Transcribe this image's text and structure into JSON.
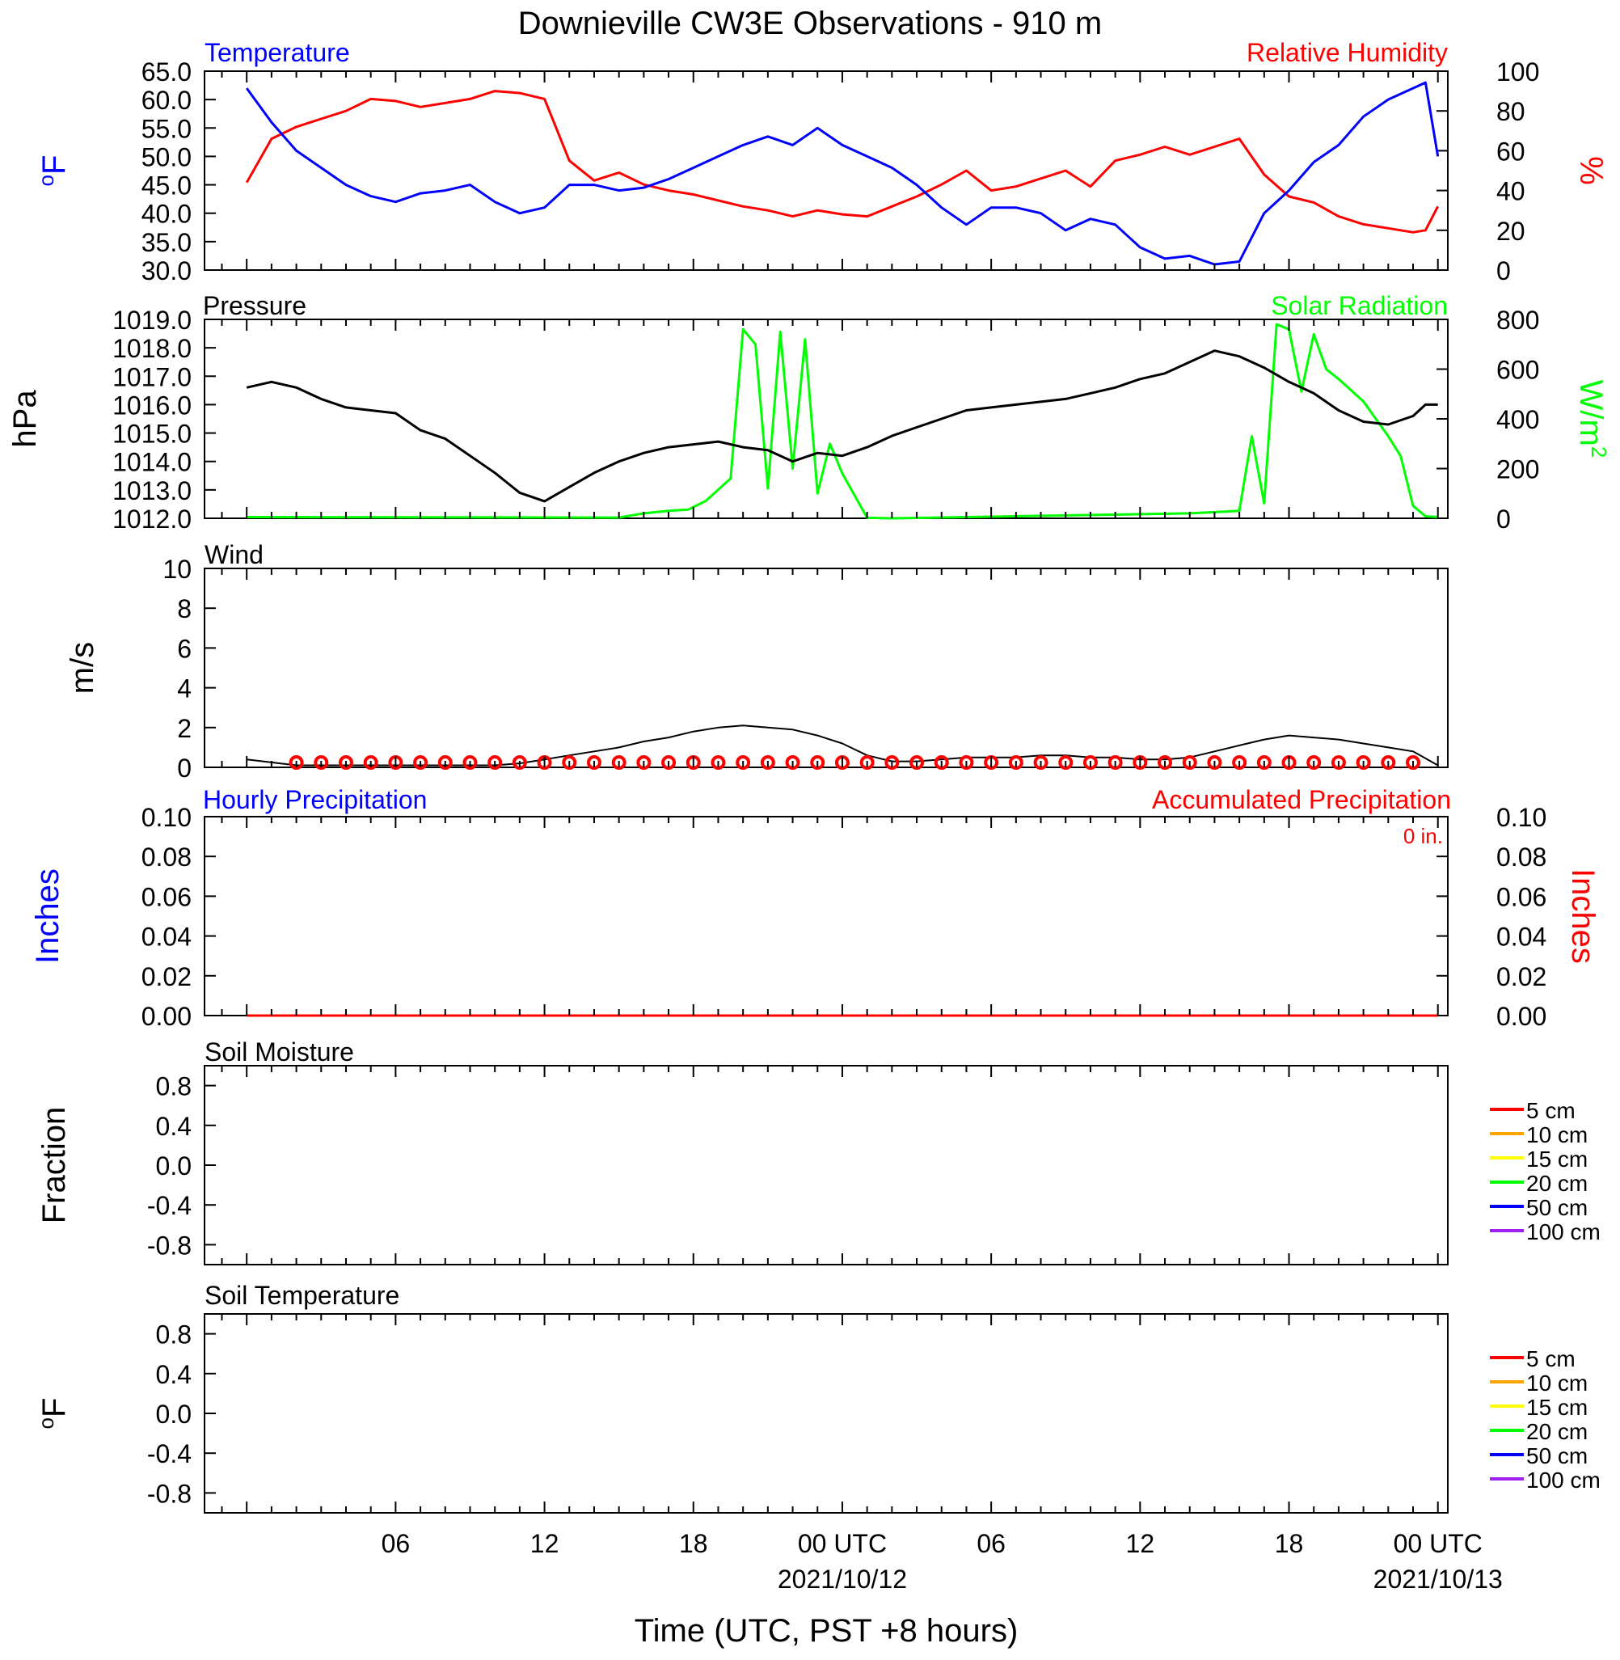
{
  "title": "Downieville CW3E Observations - 910 m",
  "xlabel": "Time (UTC, PST +8 hours)",
  "x_ticks": [
    {
      "hour": 6,
      "label": "06",
      "date": ""
    },
    {
      "hour": 12,
      "label": "12",
      "date": ""
    },
    {
      "hour": 18,
      "label": "18",
      "date": ""
    },
    {
      "hour": 24,
      "label": "00 UTC",
      "date": "2021/10/12"
    },
    {
      "hour": 30,
      "label": "06",
      "date": ""
    },
    {
      "hour": 36,
      "label": "12",
      "date": ""
    },
    {
      "hour": 42,
      "label": "18",
      "date": ""
    },
    {
      "hour": 48,
      "label": "00 UTC",
      "date": "2021/10/13"
    }
  ],
  "colors": {
    "temperature": "#0000ff",
    "humidity": "#ff0000",
    "pressure": "#000000",
    "solar": "#00ff00",
    "wind": "#000000",
    "barbs": "#ff0000",
    "precip_hourly": "#0000ff",
    "precip_accum": "#ff0000"
  },
  "panels": {
    "temp_rh": {
      "left_title": "Temperature",
      "right_title": "Relative Humidity",
      "left_unit": "oF",
      "right_unit": "%"
    },
    "pressure_solar": {
      "left_title": "Pressure",
      "right_title": "Solar Radiation",
      "left_unit": "hPa",
      "right_unit": "W/m2"
    },
    "wind": {
      "left_title": "Wind",
      "left_unit": "m/s"
    },
    "precip": {
      "left_title": "Hourly Precipitation",
      "right_title": "Accumulated Precipitation",
      "left_unit": "Inches",
      "right_unit": "Inches",
      "accum_label": "0 in."
    },
    "soil_moisture": {
      "left_title": "Soil Moisture",
      "left_unit": "Fraction"
    },
    "soil_temperature": {
      "left_title": "Soil Temperature",
      "left_unit": "oF"
    }
  },
  "chart_data": [
    {
      "type": "line",
      "title": "Temperature / Relative Humidity",
      "x_unit": "hours since 2021-10-11 00 UTC",
      "ylim_left": [
        30,
        65
      ],
      "ylim_right": [
        0,
        100
      ],
      "xlim": [
        0,
        48
      ],
      "series": [
        {
          "name": "Temperature",
          "axis": "left",
          "x": [
            0,
            1,
            2,
            3,
            4,
            5,
            6,
            7,
            8,
            9,
            10,
            11,
            12,
            13,
            14,
            15,
            16,
            17,
            18,
            19,
            20,
            21,
            22,
            23,
            24,
            25,
            26,
            27,
            28,
            29,
            30,
            31,
            32,
            33,
            34,
            35,
            36,
            37,
            38,
            39,
            40,
            41,
            42,
            43,
            44,
            45,
            46,
            47,
            47.5,
            48
          ],
          "y": [
            62,
            56,
            51,
            48,
            45,
            43,
            42,
            43.5,
            44,
            45,
            42,
            40,
            41,
            45,
            45,
            44,
            44.5,
            46,
            48,
            50,
            52,
            53.5,
            52,
            55,
            52,
            50,
            48,
            45,
            41,
            38,
            41,
            41,
            40,
            37,
            39,
            38,
            34,
            32,
            32.5,
            31,
            31.5,
            40,
            44,
            49,
            52,
            57,
            60,
            62,
            63,
            50
          ]
        },
        {
          "name": "Relative Humidity",
          "axis": "right",
          "x": [
            0,
            1,
            2,
            3,
            4,
            5,
            6,
            7,
            8,
            9,
            10,
            11,
            12,
            13,
            14,
            15,
            16,
            17,
            18,
            19,
            20,
            21,
            22,
            23,
            24,
            25,
            26,
            27,
            28,
            29,
            30,
            31,
            32,
            33,
            34,
            35,
            36,
            37,
            38,
            39,
            40,
            41,
            42,
            43,
            44,
            45,
            46,
            47,
            47.5,
            48
          ],
          "y": [
            44,
            66,
            72,
            76,
            80,
            86,
            85,
            82,
            84,
            86,
            90,
            89,
            86,
            55,
            45,
            49,
            43,
            40,
            38,
            35,
            32,
            30,
            27,
            30,
            28,
            27,
            32,
            37,
            43,
            50,
            40,
            42,
            46,
            50,
            42,
            55,
            58,
            62,
            58,
            62,
            66,
            48,
            37,
            34,
            27,
            23,
            21,
            19,
            20,
            32
          ]
        }
      ]
    },
    {
      "type": "line",
      "title": "Pressure / Solar Radiation",
      "x_unit": "hours since 2021-10-11 00 UTC",
      "ylim_left": [
        1012,
        1019
      ],
      "ylim_right": [
        0,
        800
      ],
      "xlim": [
        0,
        48
      ],
      "series": [
        {
          "name": "Pressure",
          "axis": "left",
          "x": [
            0,
            1,
            2,
            3,
            4,
            5,
            6,
            7,
            8,
            9,
            10,
            11,
            12,
            13,
            14,
            15,
            16,
            17,
            18,
            19,
            20,
            21,
            22,
            23,
            24,
            25,
            26,
            27,
            28,
            29,
            30,
            31,
            32,
            33,
            34,
            35,
            36,
            37,
            38,
            39,
            40,
            41,
            42,
            43,
            44,
            45,
            46,
            47,
            47.5,
            48
          ],
          "y": [
            1016.6,
            1016.8,
            1016.6,
            1016.2,
            1015.9,
            1015.8,
            1015.7,
            1015.1,
            1014.8,
            1014.2,
            1013.6,
            1012.9,
            1012.6,
            1013.1,
            1013.6,
            1014.0,
            1014.3,
            1014.5,
            1014.6,
            1014.7,
            1014.5,
            1014.4,
            1014.0,
            1014.3,
            1014.2,
            1014.5,
            1014.9,
            1015.2,
            1015.5,
            1015.8,
            1015.9,
            1016.0,
            1016.1,
            1016.2,
            1016.4,
            1016.6,
            1016.9,
            1017.1,
            1017.5,
            1017.9,
            1017.7,
            1017.3,
            1016.8,
            1016.4,
            1015.8,
            1015.4,
            1015.3,
            1015.6,
            1016.0,
            1016.0
          ]
        },
        {
          "name": "Solar Radiation",
          "axis": "right",
          "x": [
            0,
            15,
            16,
            17,
            17.8,
            18.5,
            19.5,
            20,
            20.5,
            21,
            21.5,
            22,
            22.5,
            23,
            23.5,
            24,
            25,
            26,
            38,
            40,
            40.5,
            41,
            41.5,
            42,
            42.5,
            43,
            43.5,
            44,
            45,
            46,
            46.5,
            47,
            47.5,
            48
          ],
          "y": [
            5,
            3,
            20,
            30,
            35,
            70,
            160,
            760,
            700,
            120,
            750,
            200,
            720,
            100,
            300,
            180,
            2,
            0,
            20,
            30,
            330,
            60,
            780,
            760,
            510,
            740,
            600,
            560,
            470,
            330,
            250,
            50,
            8,
            5
          ]
        }
      ]
    },
    {
      "type": "line",
      "title": "Wind",
      "x_unit": "hours since 2021-10-11 00 UTC",
      "ylim": [
        0,
        10
      ],
      "xlim": [
        0,
        48
      ],
      "series": [
        {
          "name": "Wind",
          "x": [
            0,
            2,
            4,
            6,
            8,
            10,
            11,
            12,
            13,
            14,
            15,
            16,
            17,
            18,
            19,
            20,
            21,
            22,
            23,
            24,
            25,
            26,
            27,
            28,
            29,
            30,
            31,
            32,
            33,
            34,
            35,
            36,
            37,
            38,
            39,
            40,
            41,
            42,
            43,
            44,
            45,
            46,
            47,
            48
          ],
          "y": [
            0.4,
            0.1,
            0.1,
            0.1,
            0.1,
            0.1,
            0.2,
            0.4,
            0.6,
            0.8,
            1.0,
            1.3,
            1.5,
            1.8,
            2.0,
            2.1,
            2.0,
            1.9,
            1.6,
            1.2,
            0.6,
            0.3,
            0.3,
            0.4,
            0.5,
            0.5,
            0.5,
            0.6,
            0.6,
            0.5,
            0.5,
            0.4,
            0.4,
            0.5,
            0.8,
            1.1,
            1.4,
            1.6,
            1.5,
            1.4,
            1.2,
            1.0,
            0.8,
            0.1
          ]
        }
      ],
      "barb_hours": [
        2,
        3,
        4,
        5,
        6,
        7,
        8,
        9,
        10,
        11,
        12,
        13,
        14,
        15,
        16,
        17,
        18,
        19,
        20,
        21,
        22,
        23,
        24,
        25,
        26,
        27,
        28,
        29,
        30,
        31,
        32,
        33,
        34,
        35,
        36,
        37,
        38,
        39,
        40,
        41,
        42,
        43,
        44,
        45,
        46,
        47
      ]
    },
    {
      "type": "line",
      "title": "Hourly Precipitation / Accumulated Precipitation",
      "ylim_left": [
        0,
        0.1
      ],
      "ylim_right": [
        0,
        0.1
      ],
      "xlim": [
        0,
        48
      ],
      "series": [
        {
          "name": "Hourly Precipitation",
          "axis": "left",
          "x": [
            0,
            48
          ],
          "y": [
            0,
            0
          ]
        },
        {
          "name": "Accumulated Precipitation",
          "axis": "right",
          "x": [
            0,
            48
          ],
          "y": [
            0,
            0
          ]
        }
      ]
    },
    {
      "type": "line",
      "title": "Soil Moisture",
      "ylim": [
        -1,
        1
      ],
      "xlim": [
        0,
        48
      ],
      "legend": [
        "5 cm",
        "10 cm",
        "15 cm",
        "20 cm",
        "50 cm",
        "100 cm"
      ],
      "series": []
    },
    {
      "type": "line",
      "title": "Soil Temperature",
      "ylim": [
        -1,
        1
      ],
      "xlim": [
        0,
        48
      ],
      "legend": [
        "5 cm",
        "10 cm",
        "15 cm",
        "20 cm",
        "50 cm",
        "100 cm"
      ],
      "series": []
    }
  ],
  "ticks": {
    "temp": [
      "65.0",
      "60.0",
      "55.0",
      "50.0",
      "45.0",
      "40.0",
      "35.0",
      "30.0"
    ],
    "rh": [
      "100",
      "80",
      "60",
      "40",
      "20",
      "0"
    ],
    "pressure": [
      "1019.0",
      "1018.0",
      "1017.0",
      "1016.0",
      "1015.0",
      "1014.0",
      "1013.0",
      "1012.0"
    ],
    "solar": [
      "800",
      "600",
      "400",
      "200",
      "0"
    ],
    "wind": [
      "10",
      "8",
      "6",
      "4",
      "2",
      "0"
    ],
    "precip": [
      "0.10",
      "0.08",
      "0.06",
      "0.04",
      "0.02",
      "0.00"
    ],
    "soil": [
      "0.8",
      "0.4",
      "0.0",
      "-0.4",
      "-0.8"
    ]
  },
  "legend_colors": [
    "#ff0000",
    "#ffa500",
    "#ffff00",
    "#00ff00",
    "#0000ff",
    "#a020f0"
  ]
}
